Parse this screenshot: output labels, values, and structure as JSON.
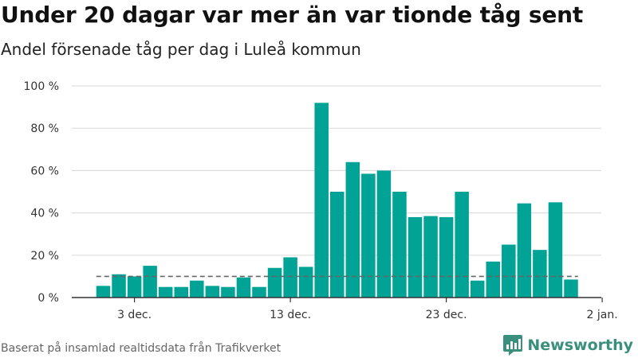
{
  "title": "Under 20 dagar var mer än var tionde tåg sent",
  "subtitle": "Andel försenade tåg per dag i Luleå kommun",
  "source": "Baserat på insamlad realtidsdata från Trafikverket",
  "brand": {
    "name": "Newsworthy",
    "icon": "newsworthy-logo-icon",
    "color": "#3a8f7d"
  },
  "colors": {
    "bar": "#00a396",
    "reference_line": "#666666",
    "grid": "#dddddd",
    "axis": "#333333"
  },
  "chart_data": {
    "type": "bar",
    "categories": [
      "1 dec.",
      "2 dec.",
      "3 dec.",
      "4 dec.",
      "5 dec.",
      "6 dec.",
      "7 dec.",
      "8 dec.",
      "9 dec.",
      "10 dec.",
      "11 dec.",
      "12 dec.",
      "13 dec.",
      "14 dec.",
      "15 dec.",
      "16 dec.",
      "17 dec.",
      "18 dec.",
      "19 dec.",
      "20 dec.",
      "21 dec.",
      "22 dec.",
      "23 dec.",
      "24 dec.",
      "25 dec.",
      "26 dec.",
      "27 dec.",
      "28 dec.",
      "29 dec.",
      "30 dec.",
      "31 dec."
    ],
    "values": [
      5.5,
      11,
      10,
      15,
      5,
      5,
      8,
      5.5,
      5,
      9.5,
      5,
      14,
      19,
      14.5,
      92,
      50,
      64,
      58.5,
      60,
      50,
      38,
      38.5,
      38,
      50,
      8,
      17,
      25,
      44.5,
      22.5,
      45,
      8.5
    ],
    "reference_line": {
      "value": 10,
      "style": "dashed"
    },
    "x_ticks": [
      "3 dec.",
      "13 dec.",
      "23 dec.",
      "2 jan."
    ],
    "x_tick_positions": [
      "3 dec.",
      "13 dec.",
      "23 dec.",
      "2 jan."
    ],
    "y_ticks": [
      0,
      20,
      40,
      60,
      80,
      100
    ],
    "y_tick_labels": [
      "0 %",
      "20 %",
      "40 %",
      "60 %",
      "80 %",
      "100 %"
    ],
    "ylim": [
      0,
      100
    ],
    "grid": true,
    "xlabel": "",
    "ylabel": ""
  }
}
